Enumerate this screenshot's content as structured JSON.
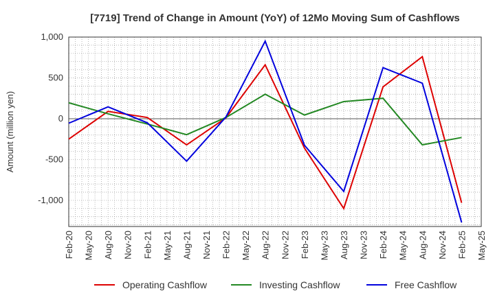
{
  "chart_data": {
    "type": "line",
    "title": "[7719]  Trend of Change in Amount (YoY) of 12Mo Moving Sum of Cashflows",
    "xlabel": "",
    "ylabel": "Amount (million yen)",
    "ylim": [
      -1320,
      1000
    ],
    "yticks": [
      1000,
      500,
      0,
      -500,
      -1000
    ],
    "ytick_labels": [
      "1,000",
      "500",
      "0",
      "-500",
      "-1,000"
    ],
    "categories": [
      "Feb-20",
      "May-20",
      "Aug-20",
      "Nov-20",
      "Feb-21",
      "May-21",
      "Aug-21",
      "Nov-21",
      "Feb-22",
      "May-22",
      "Aug-22",
      "Nov-22",
      "Feb-23",
      "May-23",
      "Aug-23",
      "Nov-23",
      "Feb-24",
      "May-24",
      "Aug-24",
      "Nov-24",
      "Feb-25",
      "May-25"
    ],
    "grid": true,
    "legend_position": "bottom",
    "series": [
      {
        "name": "Operating Cashflow",
        "color": "#dd0000",
        "x": [
          "Feb-20",
          "Aug-20",
          "Feb-21",
          "Aug-21",
          "Feb-22",
          "Aug-22",
          "Feb-23",
          "Aug-23",
          "Feb-24",
          "Aug-24",
          "Feb-25"
        ],
        "values": [
          -250,
          90,
          15,
          -320,
          10,
          660,
          -360,
          -1100,
          390,
          760,
          -1030
        ]
      },
      {
        "name": "Investing Cashflow",
        "color": "#228822",
        "x": [
          "Feb-20",
          "Aug-20",
          "Feb-21",
          "Aug-21",
          "Feb-22",
          "Aug-22",
          "Feb-23",
          "Aug-23",
          "Feb-24",
          "Aug-24",
          "Feb-25"
        ],
        "values": [
          195,
          60,
          -65,
          -195,
          15,
          300,
          45,
          210,
          250,
          -320,
          -230
        ]
      },
      {
        "name": "Free Cashflow",
        "color": "#0000dd",
        "x": [
          "Feb-20",
          "Aug-20",
          "Feb-21",
          "Aug-21",
          "Feb-22",
          "Aug-22",
          "Feb-23",
          "Aug-23",
          "Feb-24",
          "Aug-24",
          "Feb-25"
        ],
        "values": [
          -55,
          145,
          -50,
          -520,
          20,
          950,
          -325,
          -890,
          625,
          435,
          -1270
        ]
      }
    ]
  }
}
